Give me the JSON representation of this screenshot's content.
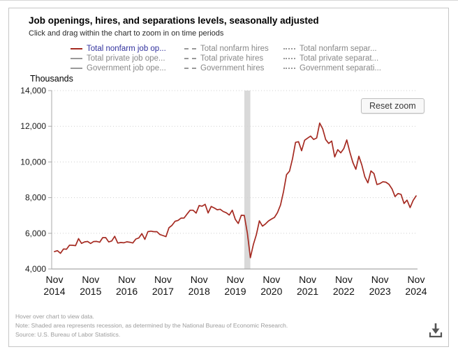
{
  "card": {
    "title": "Job openings, hires, and separations levels, seasonally adjusted",
    "subtitle": "Click and drag within the chart to zoom in on time periods"
  },
  "buttons": {
    "reset_zoom": "Reset zoom"
  },
  "icons": {
    "download": "download-arrow-into-tray"
  },
  "colors": {
    "accent_red": "#a52a21",
    "legend_active_text": "#32329e",
    "legend_inactive_text": "#888888",
    "recession_band": "#d9d9d9",
    "grid": "#cfcfcf",
    "axis": "#a9a9a9"
  },
  "legend": {
    "columns": [
      {
        "items": [
          {
            "label": "Total nonfarm job op...",
            "dash": "solid",
            "color": "#a52a21",
            "text_color": "#32329e"
          },
          {
            "label": "Total private job ope...",
            "dash": "solid",
            "color": "#999999",
            "text_color": "#888888"
          },
          {
            "label": "Government job ope...",
            "dash": "solid",
            "color": "#999999",
            "text_color": "#888888"
          }
        ]
      },
      {
        "items": [
          {
            "label": "Total nonfarm hires",
            "dash": "dashed",
            "color": "#999999",
            "text_color": "#888888"
          },
          {
            "label": "Total private hires",
            "dash": "dashed",
            "color": "#999999",
            "text_color": "#888888"
          },
          {
            "label": "Government hires",
            "dash": "dashed",
            "color": "#999999",
            "text_color": "#888888"
          }
        ]
      },
      {
        "items": [
          {
            "label": "Total nonfarm separ...",
            "dash": "dotted",
            "color": "#999999",
            "text_color": "#888888"
          },
          {
            "label": "Total private separat...",
            "dash": "dotted",
            "color": "#999999",
            "text_color": "#888888"
          },
          {
            "label": "Government separati...",
            "dash": "dotted",
            "color": "#999999",
            "text_color": "#888888"
          }
        ]
      }
    ]
  },
  "chart_data": {
    "type": "line",
    "title": "Job openings, hires, and separations levels, seasonally adjusted",
    "ylabel": "Thousands",
    "ylim": [
      4000,
      14000
    ],
    "grid": "horizontal-dotted",
    "legend_position": "top",
    "y_ticks": [
      {
        "value": 4000,
        "label": "4,000"
      },
      {
        "value": 6000,
        "label": "6,000"
      },
      {
        "value": 8000,
        "label": "8,000"
      },
      {
        "value": 10000,
        "label": "10,000"
      },
      {
        "value": 12000,
        "label": "12,000"
      },
      {
        "value": 14000,
        "label": "14,000"
      }
    ],
    "x_start": "2014-11",
    "x_tick_interval_months": 12,
    "x_ticks": [
      {
        "line1": "Nov",
        "line2": "2014"
      },
      {
        "line1": "Nov",
        "line2": "2015"
      },
      {
        "line1": "Nov",
        "line2": "2016"
      },
      {
        "line1": "Nov",
        "line2": "2017"
      },
      {
        "line1": "Nov",
        "line2": "2018"
      },
      {
        "line1": "Nov",
        "line2": "2019"
      },
      {
        "line1": "Nov",
        "line2": "2020"
      },
      {
        "line1": "Nov",
        "line2": "2021"
      },
      {
        "line1": "Nov",
        "line2": "2022"
      },
      {
        "line1": "Nov",
        "line2": "2023"
      },
      {
        "line1": "Nov",
        "line2": "2024"
      }
    ],
    "recession_band": {
      "from": "2020-02",
      "to": "2020-04",
      "color": "#d9d9d9"
    },
    "series": [
      {
        "name": "Total nonfarm job openings",
        "color": "#a52a21",
        "dash": "solid",
        "visible": true,
        "values": [
          4972,
          5028,
          4877,
          5121,
          5109,
          5334,
          5328,
          5307,
          5704,
          5432,
          5519,
          5542,
          5428,
          5538,
          5546,
          5500,
          5757,
          5756,
          5514,
          5570,
          5831,
          5454,
          5486,
          5470,
          5522,
          5501,
          5457,
          5681,
          5743,
          5982,
          5662,
          6090,
          6120,
          6090,
          6091,
          5930,
          5874,
          5812,
          6312,
          6445,
          6672,
          6722,
          6850,
          6854,
          7077,
          7293,
          7293,
          7131,
          7555,
          7518,
          7625,
          7142,
          7505,
          7422,
          7322,
          7348,
          7223,
          7154,
          7024,
          7294,
          6787,
          6552,
          7012,
          7004,
          6011,
          4631,
          5371,
          5921,
          6700,
          6403,
          6523,
          6690,
          6796,
          6891,
          7155,
          7584,
          8341,
          9286,
          9483,
          10185,
          11098,
          11138,
          10629,
          11215,
          11337,
          11448,
          11263,
          11344,
          12180,
          11855,
          11254,
          11041,
          11170,
          10280,
          10687,
          10512,
          10746,
          11234,
          10563,
          9974,
          9590,
          10320,
          9824,
          9165,
          8827,
          9497,
          9350,
          8733,
          8790,
          8889,
          8863,
          8748,
          8488,
          8059,
          8230,
          8184,
          7673,
          7861,
          7443,
          7839,
          8098
        ]
      }
    ]
  },
  "footer": {
    "lines": [
      "Hover over chart to view data.",
      "Note: Shaded area represents recession, as determined by the National Bureau of Economic Research.",
      "Source: U.S. Bureau of Labor Statistics."
    ]
  }
}
